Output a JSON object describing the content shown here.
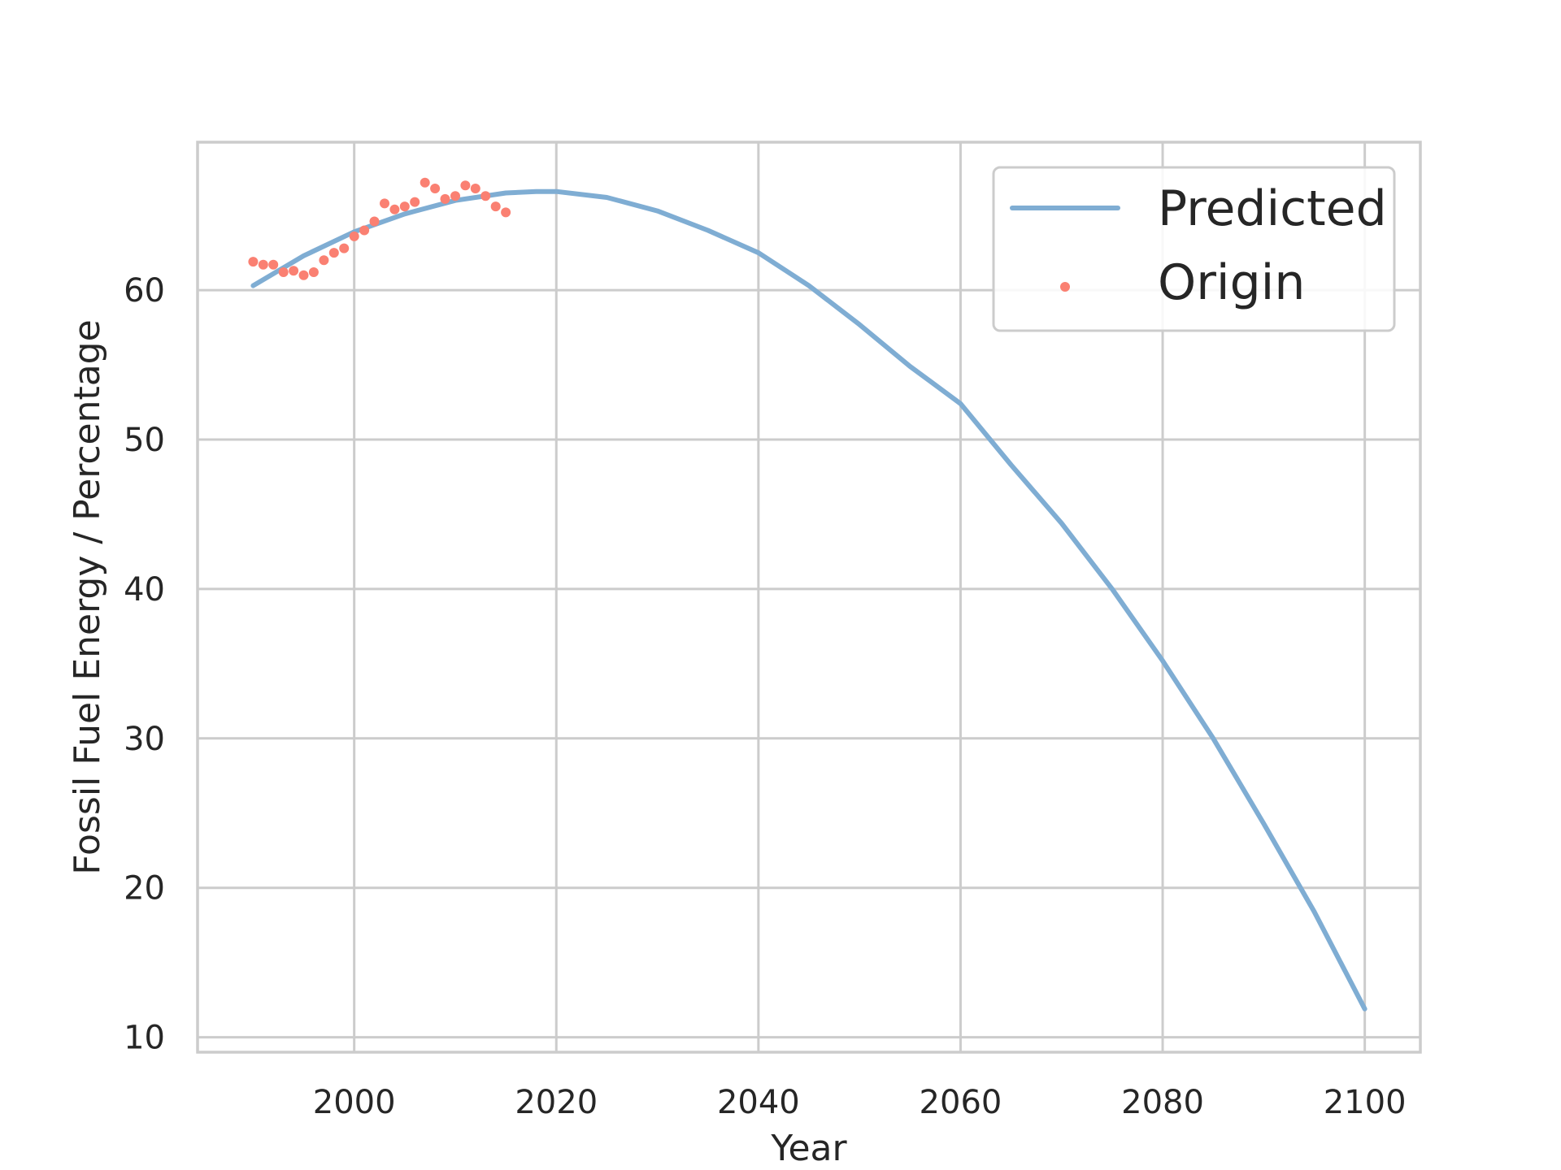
{
  "chart_data": {
    "type": "line",
    "title": "",
    "xlabel": "Year",
    "ylabel": "Fossil Fuel Energy / Percentage",
    "xlim": [
      1984.5,
      2105.5
    ],
    "ylim": [
      9,
      69.9
    ],
    "xticks": [
      2000,
      2020,
      2040,
      2060,
      2080,
      2100
    ],
    "yticks": [
      10,
      20,
      30,
      40,
      50,
      60
    ],
    "grid": true,
    "legend_position": "top-right",
    "colors": {
      "predicted": "#7fadd3",
      "origin": "#fa8072",
      "grid": "#cccccc",
      "frame": "#cccccc",
      "text": "#262626"
    },
    "series": [
      {
        "name": "Predicted",
        "kind": "line",
        "x": [
          1990,
          1995,
          2000,
          2005,
          2010,
          2015,
          2018,
          2020,
          2025,
          2030,
          2035,
          2040,
          2045,
          2050,
          2055,
          2060,
          2065,
          2070,
          2075,
          2080,
          2085,
          2090,
          2095,
          2100
        ],
        "y": [
          60.3,
          62.3,
          63.9,
          65.1,
          66.0,
          66.5,
          66.6,
          66.6,
          66.2,
          65.3,
          64.0,
          62.5,
          60.3,
          57.7,
          54.9,
          52.4,
          48.3,
          44.4,
          40.0,
          35.2,
          30.0,
          24.3,
          18.4,
          11.9
        ]
      },
      {
        "name": "Origin",
        "kind": "scatter",
        "x": [
          1990,
          1991,
          1992,
          1993,
          1994,
          1995,
          1996,
          1997,
          1998,
          1999,
          2000,
          2001,
          2002,
          2003,
          2004,
          2005,
          2006,
          2007,
          2008,
          2009,
          2010,
          2011,
          2012,
          2013,
          2014,
          2015
        ],
        "y": [
          61.9,
          61.7,
          61.7,
          61.2,
          61.3,
          61.0,
          61.2,
          62.0,
          62.5,
          62.8,
          63.6,
          64.0,
          64.6,
          65.8,
          65.4,
          65.6,
          65.9,
          67.2,
          66.8,
          66.1,
          66.3,
          67.0,
          66.8,
          66.3,
          65.6,
          65.2
        ]
      }
    ]
  }
}
